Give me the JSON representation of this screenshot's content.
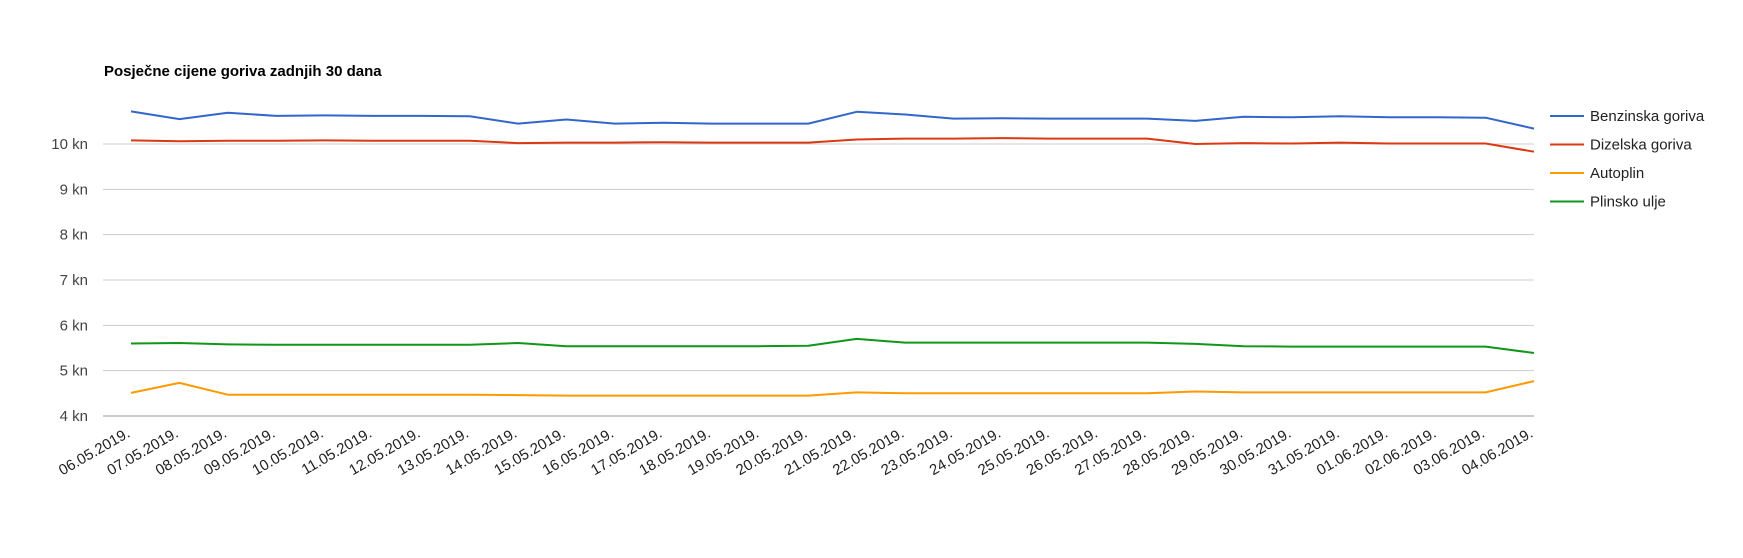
{
  "chart_data": {
    "type": "line",
    "title": "Posječne cijene goriva zadnjih 30 dana",
    "xlabel": "",
    "ylabel": "",
    "ylim": [
      3.85,
      10.95
    ],
    "yticks": [
      4,
      5,
      6,
      7,
      8,
      9,
      10
    ],
    "ytick_labels": [
      "4 kn",
      "5 kn",
      "6 kn",
      "7 kn",
      "8 kn",
      "9 kn",
      "10 kn"
    ],
    "grid": true,
    "legend_position": "right",
    "categories": [
      "06.05.2019.",
      "07.05.2019.",
      "08.05.2019.",
      "09.05.2019.",
      "10.05.2019.",
      "11.05.2019.",
      "12.05.2019.",
      "13.05.2019.",
      "14.05.2019.",
      "15.05.2019.",
      "16.05.2019.",
      "17.05.2019.",
      "18.05.2019.",
      "19.05.2019.",
      "20.05.2019.",
      "21.05.2019.",
      "22.05.2019.",
      "23.05.2019.",
      "24.05.2019.",
      "25.05.2019.",
      "26.05.2019.",
      "27.05.2019.",
      "28.05.2019.",
      "29.05.2019.",
      "30.05.2019.",
      "31.05.2019.",
      "01.06.2019.",
      "02.06.2019.",
      "03.06.2019.",
      "04.06.2019."
    ],
    "series": [
      {
        "name": "Benzinska goriva",
        "color": "#3366cc",
        "values": [
          10.72,
          10.55,
          10.69,
          10.62,
          10.63,
          10.62,
          10.62,
          10.61,
          10.45,
          10.54,
          10.45,
          10.47,
          10.45,
          10.45,
          10.45,
          10.71,
          10.65,
          10.56,
          10.57,
          10.56,
          10.56,
          10.56,
          10.51,
          10.6,
          10.59,
          10.61,
          10.59,
          10.59,
          10.58,
          10.34
        ]
      },
      {
        "name": "Dizelska goriva",
        "color": "#dc3912",
        "values": [
          10.08,
          10.06,
          10.07,
          10.07,
          10.08,
          10.07,
          10.07,
          10.07,
          10.02,
          10.03,
          10.03,
          10.04,
          10.03,
          10.03,
          10.03,
          10.1,
          10.12,
          10.12,
          10.13,
          10.12,
          10.12,
          10.12,
          10.0,
          10.02,
          10.01,
          10.03,
          10.01,
          10.01,
          10.01,
          9.83
        ]
      },
      {
        "name": "Autoplin",
        "color": "#ff9900",
        "values": [
          4.51,
          4.73,
          4.47,
          4.47,
          4.47,
          4.47,
          4.47,
          4.47,
          4.46,
          4.45,
          4.45,
          4.45,
          4.45,
          4.45,
          4.45,
          4.52,
          4.5,
          4.5,
          4.5,
          4.5,
          4.5,
          4.5,
          4.54,
          4.52,
          4.52,
          4.52,
          4.52,
          4.52,
          4.52,
          4.77
        ]
      },
      {
        "name": "Plinsko ulje",
        "color": "#109618",
        "values": [
          5.6,
          5.61,
          5.58,
          5.57,
          5.57,
          5.57,
          5.57,
          5.57,
          5.61,
          5.54,
          5.54,
          5.54,
          5.54,
          5.54,
          5.55,
          5.7,
          5.62,
          5.62,
          5.62,
          5.62,
          5.62,
          5.62,
          5.59,
          5.54,
          5.53,
          5.53,
          5.53,
          5.53,
          5.53,
          5.39
        ]
      }
    ]
  }
}
